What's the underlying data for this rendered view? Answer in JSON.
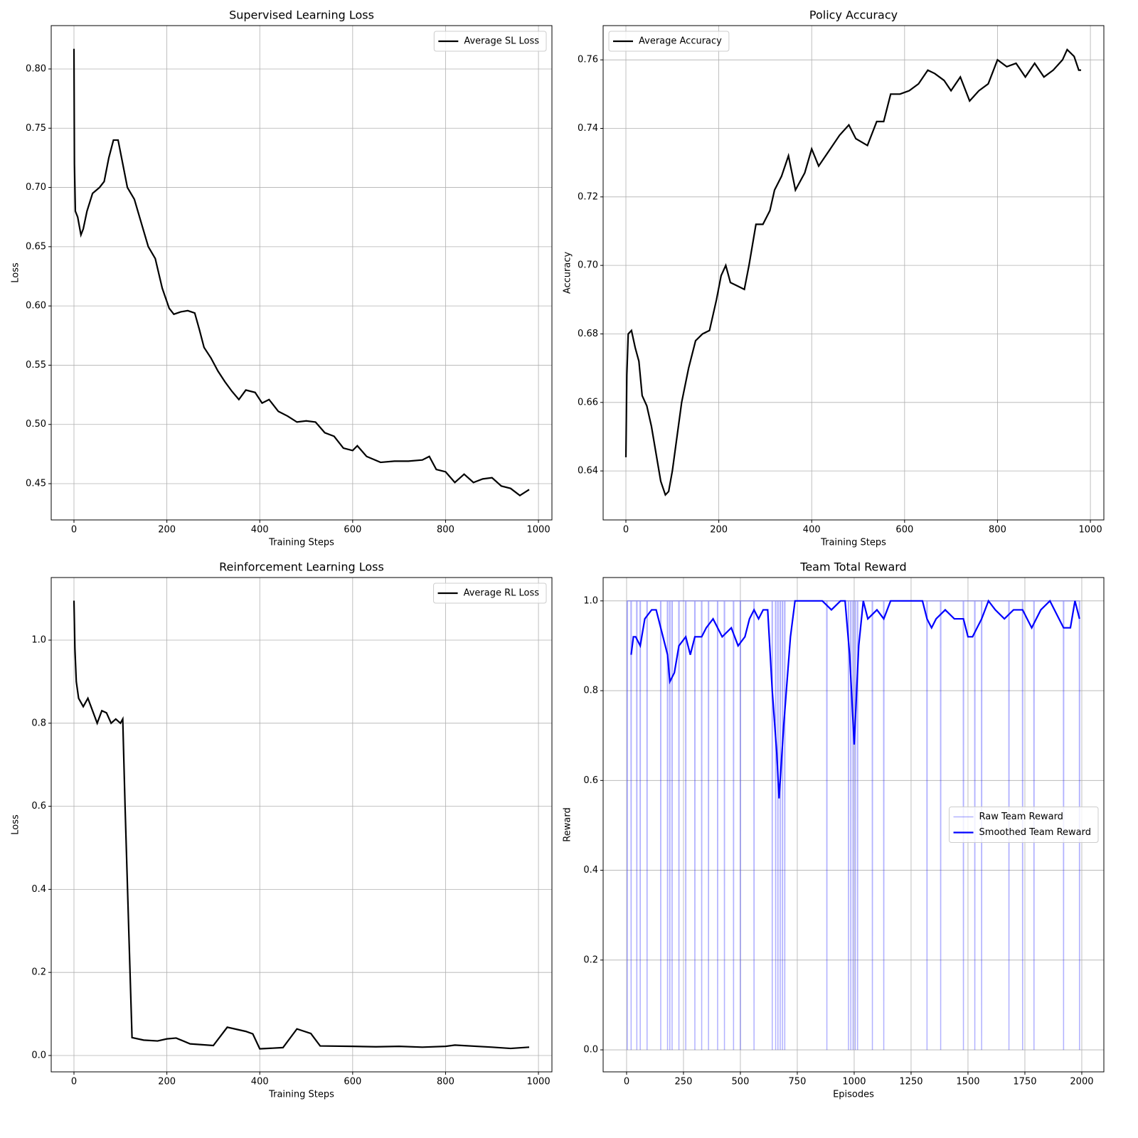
{
  "chart_data": [
    {
      "type": "line",
      "title": "Supervised Learning Loss",
      "xlabel": "Training Steps",
      "ylabel": "Loss",
      "xlim": [
        -49,
        1029
      ],
      "ylim": [
        0.4194,
        0.8366
      ],
      "xticks": [
        0,
        200,
        400,
        600,
        800,
        1000
      ],
      "yticks": [
        0.45,
        {
          "value": 0.5,
          "label": "0.50"
        },
        0.55,
        {
          "value": 0.6,
          "label": "0.60"
        },
        0.65,
        {
          "value": 0.7,
          "label": "0.70"
        },
        0.75,
        {
          "value": 0.8,
          "label": "0.80"
        }
      ],
      "grid": true,
      "legend": "upper right",
      "series": [
        {
          "name": "Average SL Loss",
          "color": "#000000",
          "x": [
            0,
            1,
            3,
            8,
            15,
            20,
            28,
            40,
            55,
            65,
            75,
            85,
            95,
            105,
            115,
            130,
            145,
            160,
            175,
            190,
            205,
            215,
            230,
            245,
            260,
            270,
            280,
            295,
            310,
            325,
            340,
            355,
            370,
            390,
            405,
            420,
            440,
            460,
            480,
            500,
            520,
            540,
            560,
            580,
            600,
            610,
            630,
            660,
            690,
            720,
            750,
            765,
            780,
            800,
            820,
            840,
            860,
            880,
            900,
            920,
            940,
            960,
            980
          ],
          "values": [
            0.817,
            0.72,
            0.68,
            0.675,
            0.66,
            0.665,
            0.68,
            0.695,
            0.7,
            0.705,
            0.725,
            0.74,
            0.74,
            0.72,
            0.7,
            0.69,
            0.67,
            0.65,
            0.64,
            0.615,
            0.598,
            0.593,
            0.595,
            0.596,
            0.594,
            0.58,
            0.565,
            0.556,
            0.545,
            0.536,
            0.528,
            0.521,
            0.529,
            0.527,
            0.518,
            0.521,
            0.511,
            0.507,
            0.502,
            0.503,
            0.502,
            0.493,
            0.49,
            0.48,
            0.478,
            0.482,
            0.473,
            0.468,
            0.469,
            0.469,
            0.47,
            0.473,
            0.462,
            0.46,
            0.451,
            0.458,
            0.451,
            0.454,
            0.455,
            0.448,
            0.446,
            0.44,
            0.445
          ]
        }
      ]
    },
    {
      "type": "line",
      "title": "Policy Accuracy",
      "xlabel": "Training Steps",
      "ylabel": "Accuracy",
      "xlim": [
        -49,
        1029
      ],
      "ylim": [
        0.6257,
        0.77
      ],
      "xticks": [
        0,
        200,
        400,
        600,
        800,
        1000
      ],
      "yticks": [
        0.64,
        0.66,
        0.68,
        {
          "value": 0.7,
          "label": "0.70"
        },
        0.72,
        0.74,
        0.76
      ],
      "grid": true,
      "legend": "upper left",
      "series": [
        {
          "name": "Average Accuracy",
          "color": "#000000",
          "x": [
            0,
            2,
            5,
            12,
            20,
            28,
            35,
            45,
            55,
            65,
            75,
            85,
            92,
            100,
            110,
            120,
            135,
            150,
            165,
            180,
            195,
            205,
            215,
            225,
            240,
            255,
            265,
            280,
            295,
            310,
            320,
            335,
            350,
            365,
            385,
            400,
            415,
            435,
            460,
            480,
            495,
            520,
            540,
            555,
            570,
            590,
            610,
            630,
            650,
            665,
            685,
            700,
            720,
            740,
            760,
            780,
            800,
            820,
            840,
            860,
            880,
            900,
            920,
            940,
            950,
            965,
            975,
            980
          ],
          "values": [
            0.644,
            0.668,
            0.68,
            0.681,
            0.676,
            0.672,
            0.662,
            0.659,
            0.653,
            0.645,
            0.637,
            0.633,
            0.634,
            0.64,
            0.65,
            0.66,
            0.67,
            0.678,
            0.68,
            0.681,
            0.69,
            0.697,
            0.7,
            0.695,
            0.694,
            0.693,
            0.7,
            0.712,
            0.712,
            0.716,
            0.722,
            0.726,
            0.732,
            0.722,
            0.727,
            0.734,
            0.729,
            0.733,
            0.738,
            0.741,
            0.737,
            0.735,
            0.742,
            0.742,
            0.75,
            0.75,
            0.751,
            0.753,
            0.757,
            0.756,
            0.754,
            0.751,
            0.755,
            0.748,
            0.751,
            0.753,
            0.76,
            0.758,
            0.759,
            0.755,
            0.759,
            0.755,
            0.757,
            0.76,
            0.763,
            0.761,
            0.757,
            0.757
          ]
        }
      ]
    },
    {
      "type": "line",
      "title": "Reinforcement Learning Loss",
      "xlabel": "Training Steps",
      "ylabel": "Loss",
      "xlim": [
        -49,
        1029
      ],
      "ylim": [
        -0.0394,
        1.1507
      ],
      "xticks": [
        0,
        200,
        400,
        600,
        800,
        1000
      ],
      "yticks": [
        {
          "value": 0,
          "label": "0.0"
        },
        0.2,
        0.4,
        0.6,
        0.8,
        {
          "value": 1,
          "label": "1.0"
        }
      ],
      "grid": true,
      "legend": "upper right",
      "series": [
        {
          "name": "Average RL Loss",
          "color": "#000000",
          "x": [
            0,
            2,
            5,
            10,
            20,
            30,
            40,
            50,
            60,
            70,
            80,
            90,
            100,
            105,
            110,
            118,
            125,
            150,
            180,
            200,
            220,
            250,
            300,
            330,
            370,
            385,
            400,
            450,
            480,
            510,
            530,
            600,
            650,
            700,
            750,
            800,
            820,
            900,
            940,
            980
          ],
          "values": [
            1.095,
            0.98,
            0.9,
            0.86,
            0.84,
            0.86,
            0.83,
            0.8,
            0.83,
            0.825,
            0.8,
            0.81,
            0.8,
            0.81,
            0.6,
            0.3,
            0.043,
            0.037,
            0.035,
            0.04,
            0.042,
            0.028,
            0.024,
            0.068,
            0.058,
            0.052,
            0.016,
            0.019,
            0.064,
            0.053,
            0.023,
            0.022,
            0.021,
            0.022,
            0.02,
            0.022,
            0.025,
            0.02,
            0.017,
            0.02
          ]
        }
      ]
    },
    {
      "type": "line",
      "title": "Team Total Reward",
      "xlabel": "Episodes",
      "ylabel": "Reward",
      "xlim": [
        -103,
        2097
      ],
      "ylim": [
        -0.049,
        1.052
      ],
      "xticks": [
        0,
        250,
        500,
        750,
        1000,
        1250,
        1500,
        1750,
        2000
      ],
      "yticks": [
        {
          "value": 0,
          "label": "0.0"
        },
        0.2,
        0.4,
        0.6,
        0.8,
        {
          "value": 1,
          "label": "1.0"
        }
      ],
      "grid": true,
      "legend": "center right",
      "series": [
        {
          "name": "Raw Team Reward",
          "color": "#0000ff",
          "alpha": 0.3,
          "x": [
            2,
            3,
            4,
            19,
            20,
            21,
            44,
            45,
            46,
            59,
            60,
            61,
            89,
            90,
            91,
            149,
            150,
            151,
            179,
            180,
            181,
            189,
            190,
            191,
            199,
            200,
            201,
            229,
            230,
            231,
            259,
            260,
            261,
            299,
            300,
            301,
            329,
            330,
            331,
            359,
            360,
            361,
            399,
            400,
            401,
            429,
            430,
            431,
            469,
            470,
            471,
            499,
            500,
            501,
            559,
            560,
            561,
            639,
            640,
            641,
            654,
            655,
            656,
            664,
            665,
            666,
            674,
            675,
            676,
            684,
            685,
            686,
            694,
            695,
            696,
            879,
            880,
            881,
            974,
            975,
            976,
            984,
            985,
            986,
            994,
            995,
            996,
            1004,
            1005,
            1006,
            1014,
            1015,
            1016,
            1079,
            1080,
            1081,
            1129,
            1130,
            1131,
            1319,
            1320,
            1321,
            1379,
            1380,
            1381,
            1479,
            1480,
            1481,
            1529,
            1530,
            1531,
            1559,
            1560,
            1561,
            1679,
            1680,
            1681,
            1739,
            1740,
            1741,
            1789,
            1790,
            1791,
            1919,
            1920,
            1921,
            1989,
            1990,
            1991
          ],
          "values": [
            1,
            0,
            1,
            1,
            0,
            1,
            1,
            0,
            1,
            1,
            0,
            1,
            1,
            0,
            1,
            1,
            0,
            1,
            1,
            0,
            1,
            1,
            0,
            1,
            1,
            0,
            1,
            1,
            0,
            1,
            1,
            0,
            1,
            1,
            0,
            1,
            1,
            0,
            1,
            1,
            0,
            1,
            1,
            0,
            1,
            1,
            0,
            1,
            1,
            0,
            1,
            1,
            0,
            1,
            1,
            0,
            1,
            1,
            0,
            1,
            1,
            0,
            1,
            1,
            0,
            1,
            1,
            0,
            1,
            1,
            0,
            1,
            1,
            0,
            1,
            1,
            0,
            1,
            1,
            0,
            1,
            1,
            0,
            1,
            1,
            0,
            1,
            1,
            0,
            1,
            1,
            0,
            1,
            1,
            0,
            1,
            1,
            0,
            1,
            1,
            0,
            1,
            1,
            0,
            1,
            1,
            0,
            1,
            1,
            0,
            1,
            1,
            0,
            1,
            1,
            0,
            1,
            1,
            0,
            1,
            1,
            0,
            1,
            1,
            0,
            1,
            1,
            0,
            1
          ]
        },
        {
          "name": "Smoothed Team Reward",
          "color": "#0000ff",
          "x": [
            20,
            30,
            40,
            60,
            80,
            110,
            130,
            160,
            180,
            190,
            210,
            230,
            260,
            280,
            300,
            330,
            350,
            380,
            420,
            460,
            490,
            520,
            540,
            560,
            580,
            600,
            620,
            640,
            660,
            670,
            690,
            720,
            740,
            860,
            900,
            940,
            960,
            980,
            1000,
            1020,
            1040,
            1060,
            1100,
            1130,
            1160,
            1300,
            1320,
            1340,
            1360,
            1400,
            1440,
            1480,
            1500,
            1520,
            1560,
            1590,
            1620,
            1660,
            1700,
            1740,
            1780,
            1820,
            1860,
            1900,
            1920,
            1950,
            1970,
            1990
          ],
          "values": [
            0.88,
            0.92,
            0.92,
            0.9,
            0.96,
            0.98,
            0.98,
            0.92,
            0.88,
            0.82,
            0.84,
            0.9,
            0.92,
            0.88,
            0.92,
            0.92,
            0.94,
            0.96,
            0.92,
            0.94,
            0.9,
            0.92,
            0.96,
            0.98,
            0.96,
            0.98,
            0.98,
            0.8,
            0.66,
            0.56,
            0.72,
            0.92,
            1,
            1,
            0.98,
            1,
            1,
            0.88,
            0.68,
            0.9,
            1,
            0.96,
            0.98,
            0.96,
            1,
            1,
            0.96,
            0.94,
            0.96,
            0.98,
            0.96,
            0.96,
            0.92,
            0.92,
            0.96,
            1,
            0.98,
            0.96,
            0.98,
            0.98,
            0.94,
            0.98,
            1,
            0.96,
            0.94,
            0.94,
            1,
            0.96
          ]
        }
      ]
    }
  ]
}
